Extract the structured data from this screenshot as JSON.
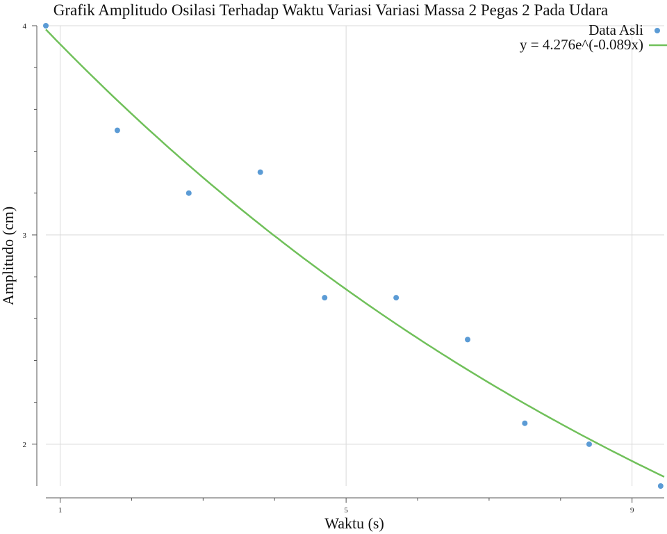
{
  "chart_data": {
    "type": "scatter",
    "title": "Grafik Amplitudo Osilasi Terhadap Waktu Variasi Variasi Massa 2 Pegas 2 Pada Udara",
    "xlabel": "Waktu (s)",
    "ylabel": "Amplitudo (cm)",
    "xlim": [
      0.8,
      9.45
    ],
    "ylim": [
      1.8,
      4.0
    ],
    "x_ticks": [
      1,
      5,
      9
    ],
    "x_minor_ticks": [
      2,
      3,
      4,
      6,
      7,
      8
    ],
    "y_ticks": [
      2,
      3,
      4
    ],
    "y_minor_ticks": [
      2.2,
      2.4,
      2.6,
      2.8,
      3.2,
      3.4,
      3.6,
      3.8
    ],
    "grid": true,
    "legend_position": "top-right",
    "series": [
      {
        "name": "Data Asli",
        "kind": "scatter",
        "color": "#5b9bd5",
        "x": [
          0.8,
          1.8,
          2.8,
          3.8,
          4.7,
          5.7,
          6.7,
          7.5,
          8.4,
          9.4
        ],
        "y": [
          4.0,
          3.5,
          3.2,
          3.3,
          2.7,
          2.7,
          2.5,
          2.1,
          2.0,
          1.8
        ]
      },
      {
        "name": "y = 4.276e^(-0.089x)",
        "kind": "line",
        "color": "#70c05a",
        "model": {
          "a": 4.276,
          "b": -0.089
        }
      }
    ]
  }
}
